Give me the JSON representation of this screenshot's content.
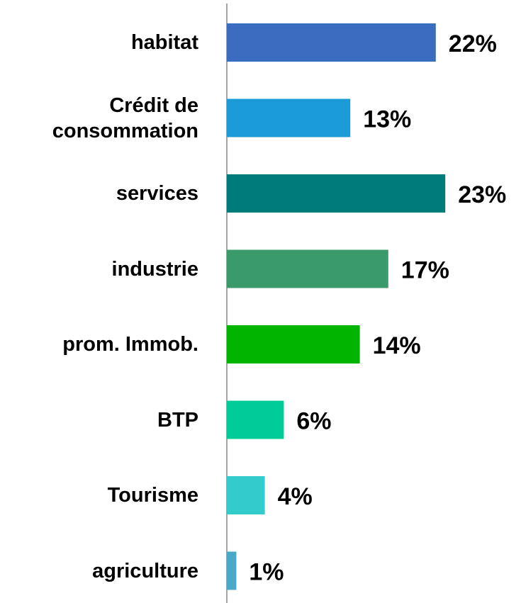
{
  "chart_data": {
    "type": "bar",
    "orientation": "horizontal",
    "categories": [
      "habitat",
      "Crédit de consommation",
      "services",
      "industrie",
      "prom. Immob.",
      "BTP",
      "Tourisme",
      "agriculture"
    ],
    "values": [
      22,
      13,
      23,
      17,
      14,
      6,
      4,
      1
    ],
    "value_labels": [
      "22%",
      "13%",
      "23%",
      "17%",
      "14%",
      "6%",
      "4%",
      "1%"
    ],
    "colors": [
      "#3a6cc0",
      "#1a9ad6",
      "#007b7b",
      "#3a9a6a",
      "#00b400",
      "#00cc99",
      "#33cccc",
      "#4aa8c8"
    ]
  }
}
